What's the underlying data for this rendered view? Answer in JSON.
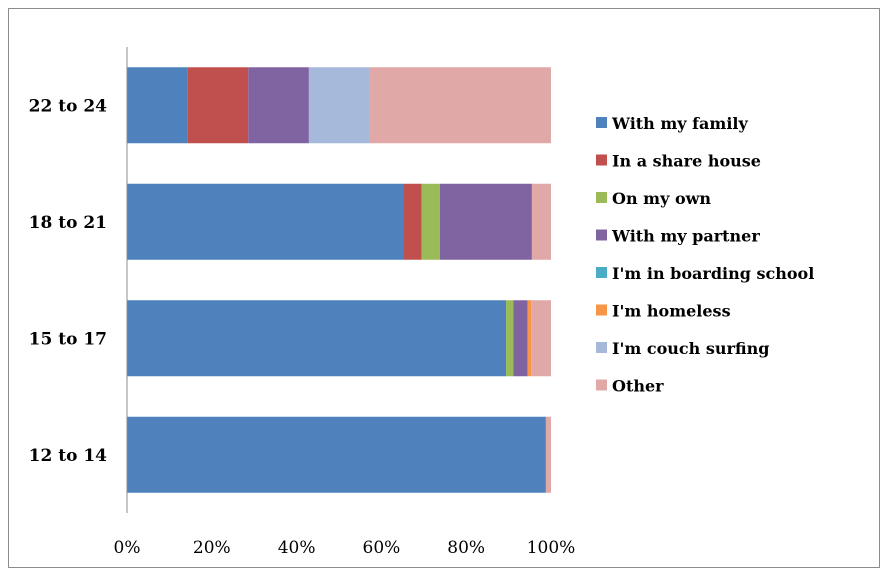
{
  "chart_data": {
    "type": "bar",
    "orientation": "horizontal",
    "stacked": "percent",
    "categories": [
      "22 to 24",
      "18 to 21",
      "15 to 17",
      "12 to 14"
    ],
    "xlim": [
      0,
      100
    ],
    "x_ticks": [
      "0%",
      "20%",
      "40%",
      "60%",
      "80%",
      "100%"
    ],
    "grid": false,
    "legend_position": "right",
    "series": [
      {
        "name": "With my family",
        "color": "#4F81BD",
        "values": [
          14.3,
          65.2,
          89.4,
          98.8
        ]
      },
      {
        "name": "In a share house",
        "color": "#C0504D",
        "values": [
          14.3,
          4.3,
          0.0,
          0.0
        ]
      },
      {
        "name": "On my own",
        "color": "#9BBB59",
        "values": [
          0.0,
          4.3,
          1.7,
          0.0
        ]
      },
      {
        "name": "With my partner",
        "color": "#8064A2",
        "values": [
          14.3,
          21.7,
          3.4,
          0.0
        ]
      },
      {
        "name": "I'm in boarding school",
        "color": "#4BACC6",
        "values": [
          0.0,
          0.0,
          0.0,
          0.0
        ]
      },
      {
        "name": "I'm homeless",
        "color": "#F79646",
        "values": [
          0.0,
          0.0,
          0.8,
          0.0
        ]
      },
      {
        "name": "I'm couch surfing",
        "color": "#A6B9DB",
        "values": [
          14.3,
          0.0,
          0.0,
          0.0
        ]
      },
      {
        "name": "Other",
        "color": "#E0A8A6",
        "values": [
          42.8,
          4.5,
          4.7,
          1.2
        ]
      }
    ]
  }
}
